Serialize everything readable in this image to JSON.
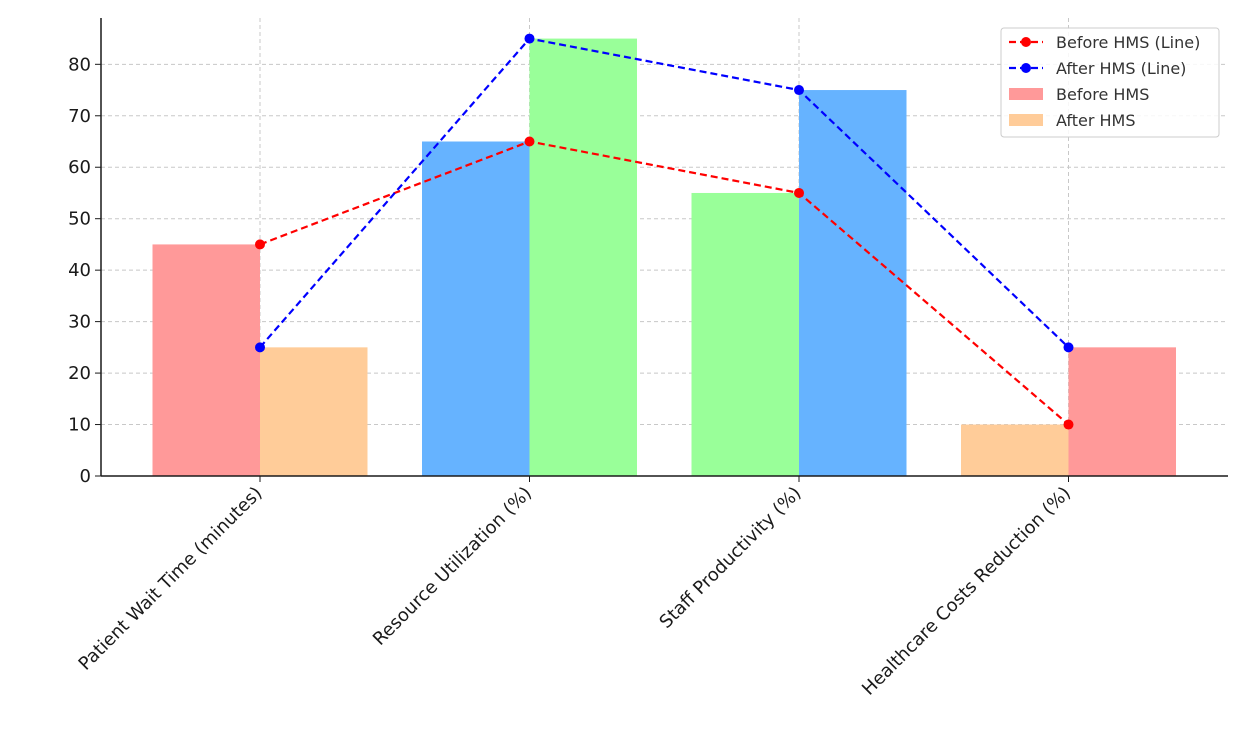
{
  "chart_data": {
    "type": "bar",
    "title": "",
    "xlabel": "",
    "ylabel": "",
    "ylim": [
      0,
      89
    ],
    "yticks": [
      0,
      10,
      20,
      30,
      40,
      50,
      60,
      70,
      80
    ],
    "grid": true,
    "legend_position": "top-right",
    "categories": [
      "Patient Wait Time (minutes)",
      "Resource Utilization (%)",
      "Staff Productivity (%)",
      "Healthcare Costs Reduction (%)"
    ],
    "series": [
      {
        "name": "Before HMS",
        "kind": "bar",
        "values": [
          45,
          65,
          55,
          10
        ],
        "colors": [
          "#ff9999",
          "#66b3ff",
          "#99ff99",
          "#ffcc99"
        ]
      },
      {
        "name": "After HMS",
        "kind": "bar",
        "values": [
          25,
          85,
          75,
          25
        ],
        "colors": [
          "#ffcc99",
          "#99ff99",
          "#66b3ff",
          "#ff9999"
        ]
      },
      {
        "name": "Before HMS (Line)",
        "kind": "line",
        "values": [
          45,
          65,
          55,
          10
        ],
        "color": "#ff0000"
      },
      {
        "name": "After HMS (Line)",
        "kind": "line",
        "values": [
          25,
          85,
          75,
          25
        ],
        "color": "#0000ff"
      }
    ],
    "legend": [
      {
        "label": "Before HMS (Line)",
        "kind": "line",
        "color": "#ff0000"
      },
      {
        "label": "After HMS (Line)",
        "kind": "line",
        "color": "#0000ff"
      },
      {
        "label": "Before HMS",
        "kind": "bar",
        "color": "#ff9999"
      },
      {
        "label": "After HMS",
        "kind": "bar",
        "color": "#ffcc99"
      }
    ]
  }
}
